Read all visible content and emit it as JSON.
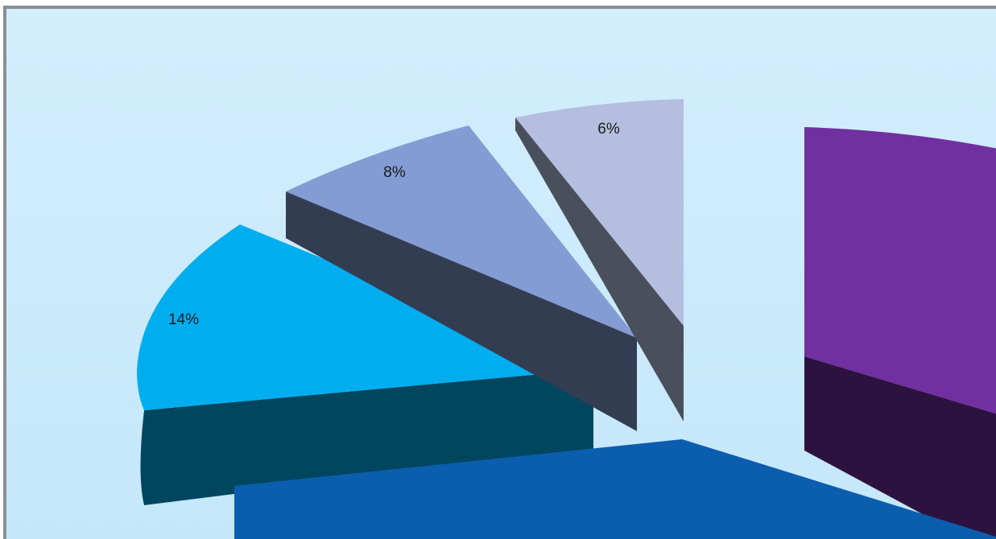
{
  "chart_data": {
    "type": "pie",
    "style": "3d-exploded",
    "slices": [
      {
        "label": "14%",
        "value": 14,
        "color": "#00AEEF",
        "side_color": "#00465F"
      },
      {
        "label": "8%",
        "value": 8,
        "color": "#839CD4",
        "side_color": "#333D52"
      },
      {
        "label": "6%",
        "value": 6,
        "color": "#B4BFE0",
        "side_color": "#4A4F5C"
      },
      {
        "label": "",
        "value": null,
        "color": "#7030A0",
        "side_color": "#2D1240"
      },
      {
        "label": "",
        "value": null,
        "color": "#0B5EAE",
        "side_color": "#083F77"
      }
    ],
    "background": {
      "top": "#D3EEFD",
      "bottom": "#C4E7FA",
      "border": "#8A8F94"
    },
    "legend": "none"
  }
}
